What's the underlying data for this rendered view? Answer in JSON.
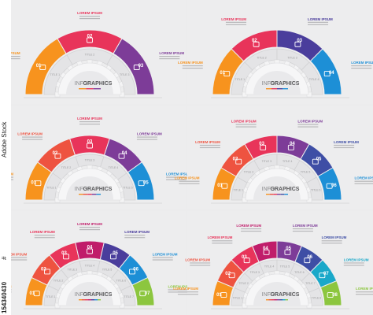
{
  "watermark": {
    "site": "Adobe Stock",
    "id_prefix": "#",
    "id": "154340430"
  },
  "infographic": {
    "center_line1": "INFO",
    "center_line2": "GRAPHICS",
    "step_label": "TITLE"
  },
  "text": {
    "lorem": "LOREM IPSUM"
  },
  "palette": [
    "#f7931e",
    "#e8345a",
    "#c01c6a",
    "#7d3c98",
    "#3e4ea5",
    "#1d8fd6",
    "#19a8c9",
    "#8cc63f"
  ],
  "panels": [
    {
      "steps": 3,
      "colors": [
        "#f7931e",
        "#e8345a",
        "#7d3c98"
      ],
      "labels": [
        "01",
        "02",
        "03"
      ]
    },
    {
      "steps": 4,
      "colors": [
        "#f7931e",
        "#e8345a",
        "#4a3d9c",
        "#1d8fd6"
      ],
      "labels": [
        "01",
        "02",
        "03",
        "04"
      ]
    },
    {
      "steps": 5,
      "colors": [
        "#f7931e",
        "#ee5340",
        "#e8345a",
        "#7d3c98",
        "#1d8fd6"
      ],
      "labels": [
        "01",
        "02",
        "03",
        "04",
        "05"
      ]
    },
    {
      "steps": 6,
      "colors": [
        "#f7931e",
        "#ee5340",
        "#e8345a",
        "#7d3c98",
        "#3e4ea5",
        "#1d8fd6"
      ],
      "labels": [
        "01",
        "02",
        "03",
        "04",
        "05",
        "06"
      ]
    },
    {
      "steps": 7,
      "colors": [
        "#f7931e",
        "#ee5340",
        "#e8345a",
        "#c01c6a",
        "#4a3d9c",
        "#1d8fd6",
        "#8cc63f"
      ],
      "labels": [
        "01",
        "02",
        "03",
        "04",
        "05",
        "06",
        "07"
      ]
    },
    {
      "steps": 8,
      "colors": [
        "#f7931e",
        "#ee5340",
        "#e8345a",
        "#c01c6a",
        "#7d3c98",
        "#3e4ea5",
        "#19a8c9",
        "#8cc63f"
      ],
      "labels": [
        "01",
        "02",
        "03",
        "04",
        "05",
        "06",
        "07",
        "08"
      ]
    }
  ]
}
